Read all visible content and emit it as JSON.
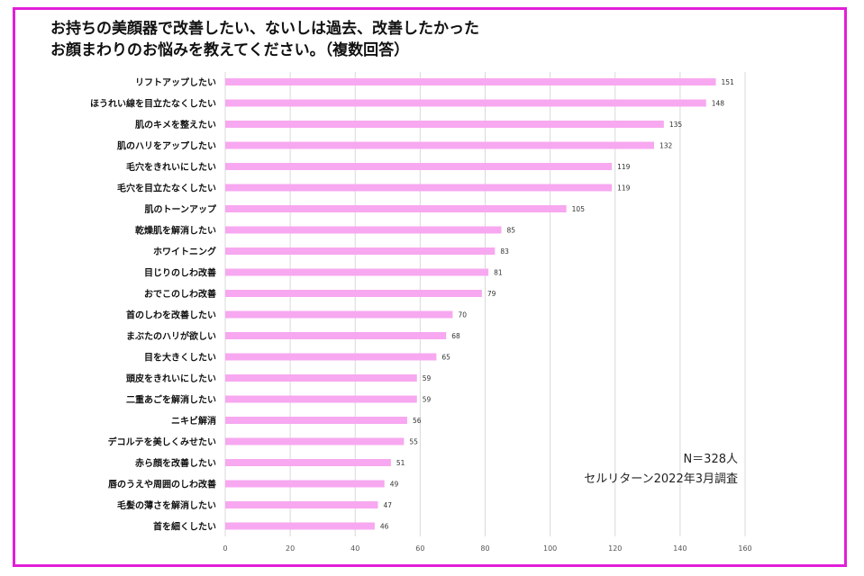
{
  "colors": {
    "border": "#e21fd8",
    "bar": "#f7a8f0",
    "grid": "#d9d9d9"
  },
  "title": {
    "line1": "お持ちの美顔器で改善したい、ないしは過去、改善したかった",
    "line2": "お顔まわりのお悩みを教えてください。（複数回答）"
  },
  "note": {
    "n": "N＝328人",
    "source": "セルリターン2022年3月調査"
  },
  "chart_data": {
    "type": "bar",
    "orientation": "horizontal",
    "categories": [
      "リフトアップしたい",
      "ほうれい線を目立たなくしたい",
      "肌のキメを整えたい",
      "肌のハリをアップしたい",
      "毛穴をきれいにしたい",
      "毛穴を目立たなくしたい",
      "肌のトーンアップ",
      "乾燥肌を解消したい",
      "ホワイトニング",
      "目じりのしわ改善",
      "おでこのしわ改善",
      "首のしわを改善したい",
      "まぶたのハリが欲しい",
      "目を大きくしたい",
      "頭皮をきれいにしたい",
      "二重あごを解消したい",
      "ニキビ解消",
      "デコルテを美しくみせたい",
      "赤ら顔を改善したい",
      "唇のうえや周囲のしわ改善",
      "毛髪の薄さを解消したい",
      "首を細くしたい"
    ],
    "values": [
      151,
      148,
      135,
      132,
      119,
      119,
      105,
      85,
      83,
      81,
      79,
      70,
      68,
      65,
      59,
      59,
      56,
      55,
      51,
      49,
      47,
      46
    ],
    "xlim": [
      0,
      160
    ],
    "xticks": [
      0,
      20,
      40,
      60,
      80,
      100,
      120,
      140,
      160
    ],
    "grid": true,
    "data_labels": true
  }
}
